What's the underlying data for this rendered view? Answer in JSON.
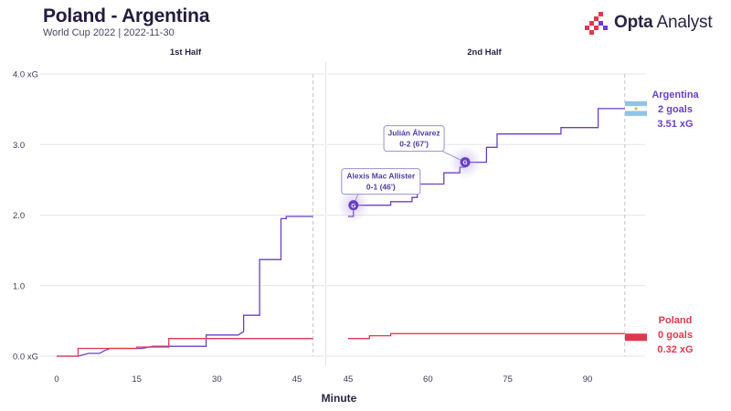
{
  "header": {
    "title": "Poland - Argentina",
    "subtitle": "World Cup 2022 | 2022-11-30"
  },
  "brand": {
    "name_bold": "Opta",
    "name_light": " Analyst",
    "icon": "opta-bars-logo-icon"
  },
  "colors": {
    "argentina": "#6a3fc6",
    "poland": "#e2384d",
    "grid": "#e6e3ec",
    "dash": "#c7c3d0",
    "goal_marker": "#6a3fc6",
    "annotation_border": "#9b8fd0"
  },
  "chart_data": {
    "type": "line",
    "subtype": "step",
    "xlabel": "Minute",
    "ylabel": "",
    "y_tick_labels": [
      "0.0 xG",
      "1.0",
      "2.0",
      "3.0",
      "4.0 xG"
    ],
    "y_ticks": [
      0,
      1,
      2,
      3,
      4
    ],
    "grid": true,
    "halves": [
      {
        "title": "1st Half",
        "xlim": [
          0,
          48
        ],
        "x_ticks": [
          0,
          15,
          30,
          45
        ],
        "x_tick_labels": [
          "0",
          "15",
          "30",
          "45"
        ],
        "end_minute": 48,
        "series": [
          {
            "team": "Argentina",
            "points": [
              [
                0,
                0
              ],
              [
                4,
                0
              ],
              [
                6,
                0.04
              ],
              [
                8,
                0.04
              ],
              [
                9,
                0.08
              ],
              [
                10,
                0.11
              ],
              [
                16,
                0.11
              ],
              [
                18,
                0.14
              ],
              [
                28,
                0.14
              ],
              [
                28,
                0.3
              ],
              [
                34,
                0.3
              ],
              [
                35,
                0.35
              ],
              [
                35,
                0.58
              ],
              [
                38,
                0.58
              ],
              [
                38,
                1.37
              ],
              [
                42,
                1.37
              ],
              [
                42,
                1.95
              ],
              [
                43,
                1.95
              ],
              [
                43,
                1.98
              ],
              [
                48,
                1.98
              ]
            ]
          },
          {
            "team": "Poland",
            "points": [
              [
                0,
                0
              ],
              [
                4,
                0
              ],
              [
                4,
                0.11
              ],
              [
                15,
                0.11
              ],
              [
                15,
                0.13
              ],
              [
                21,
                0.13
              ],
              [
                21,
                0.25
              ],
              [
                48,
                0.25
              ]
            ]
          }
        ]
      },
      {
        "title": "2nd Half",
        "xlim": [
          45,
          98
        ],
        "x_ticks": [
          45,
          60,
          75,
          90
        ],
        "x_tick_labels": [
          "45",
          "60",
          "75",
          "90"
        ],
        "end_minute": 97,
        "series": [
          {
            "team": "Argentina",
            "points": [
              [
                45,
                1.98
              ],
              [
                46,
                1.98
              ],
              [
                46,
                2.14
              ],
              [
                53,
                2.14
              ],
              [
                53,
                2.19
              ],
              [
                57,
                2.19
              ],
              [
                57,
                2.25
              ],
              [
                58,
                2.25
              ],
              [
                58,
                2.44
              ],
              [
                61,
                2.44
              ],
              [
                61,
                2.44
              ],
              [
                63,
                2.44
              ],
              [
                63,
                2.6
              ],
              [
                66,
                2.6
              ],
              [
                66,
                2.68
              ],
              [
                67,
                2.68
              ],
              [
                67,
                2.75
              ],
              [
                70,
                2.75
              ],
              [
                70,
                2.75
              ],
              [
                71,
                2.75
              ],
              [
                71,
                2.96
              ],
              [
                73,
                2.96
              ],
              [
                73,
                3.15
              ],
              [
                85,
                3.15
              ],
              [
                85,
                3.24
              ],
              [
                92,
                3.24
              ],
              [
                92,
                3.51
              ],
              [
                97,
                3.51
              ]
            ]
          },
          {
            "team": "Poland",
            "points": [
              [
                45,
                0.25
              ],
              [
                49,
                0.25
              ],
              [
                49,
                0.29
              ],
              [
                53,
                0.29
              ],
              [
                53,
                0.32
              ],
              [
                97,
                0.32
              ]
            ]
          }
        ]
      }
    ],
    "goals": [
      {
        "team": "Argentina",
        "half": 2,
        "minute": 46,
        "xg": 2.14,
        "marker_label": "G",
        "label_line1": "Alexis Mac Allister",
        "label_line2": "0-1 (46')"
      },
      {
        "team": "Argentina",
        "half": 2,
        "minute": 67,
        "xg": 2.75,
        "marker_label": "G",
        "label_line1": "Julián Álvarez",
        "label_line2": "0-2 (67')"
      }
    ],
    "teams": [
      {
        "name": "Argentina",
        "goals_label": "2 goals",
        "xg_label": "3.51 xG",
        "final_xg": 3.51,
        "flag": "argentina-flag-icon"
      },
      {
        "name": "Poland",
        "goals_label": "0 goals",
        "xg_label": "0.32 xG",
        "final_xg": 0.32,
        "flag": "poland-flag-icon"
      }
    ]
  }
}
